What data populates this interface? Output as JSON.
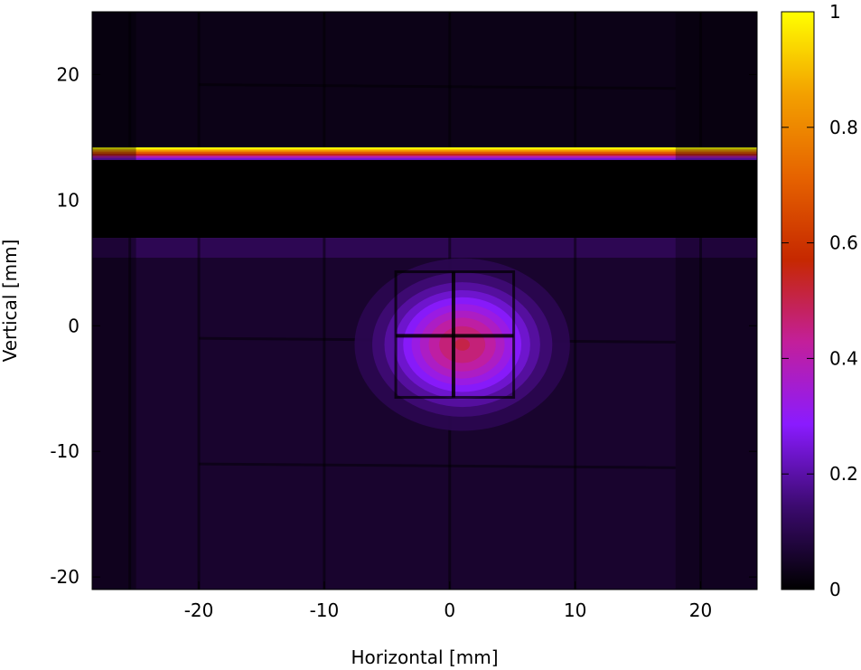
{
  "chart_data": {
    "type": "heatmap",
    "title": "",
    "xlabel": "Horizontal [mm]",
    "ylabel": "Vertical [mm]",
    "xlim": [
      -28.5,
      24.5
    ],
    "ylim": [
      -21,
      25
    ],
    "x_ticks": [
      -20,
      -10,
      0,
      10,
      20
    ],
    "x_tick_labels": [
      "-20",
      "-10",
      "0",
      "10",
      "20"
    ],
    "y_ticks": [
      -20,
      -10,
      0,
      10,
      20
    ],
    "y_tick_labels": [
      "-20",
      "-10",
      "0",
      "10",
      "20"
    ],
    "colorbar": {
      "range": [
        0,
        1
      ],
      "ticks": [
        0,
        0.2,
        0.4,
        0.6,
        0.8,
        1
      ],
      "tick_labels": [
        "0",
        "0.2",
        "0.4",
        "0.6",
        "0.8",
        "1"
      ],
      "colormap": [
        "#000000",
        "#3b0a6e",
        "#8a1bff",
        "#c31f9a",
        "#c62800",
        "#e66300",
        "#f3a000",
        "#ffff00"
      ]
    },
    "features": {
      "saturated_band": {
        "y_range": [
          13.2,
          14.2
        ],
        "x_start": -28.5,
        "value": 1.0
      },
      "dark_band": {
        "y_range": [
          7.0,
          13.2
        ],
        "value": 0.0
      },
      "upper_background": 0.03,
      "lower_background": 0.06,
      "beam_spot": {
        "center": [
          1.0,
          -1.5
        ],
        "peak": 0.45,
        "sigma": [
          4.0,
          3.2
        ],
        "frame_x": [
          -4.3,
          5.1
        ],
        "frame_y": [
          -5.7,
          4.3
        ]
      },
      "vertical_grid_lines_x": [
        -25.5,
        -20,
        -10,
        0,
        10,
        20
      ],
      "horizontal_grid_lines_y": [
        19.2,
        -1.0,
        -11.0
      ]
    }
  }
}
